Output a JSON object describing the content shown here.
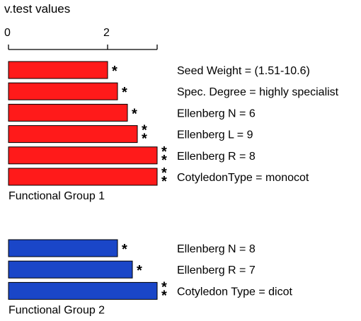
{
  "chart_data": {
    "type": "bar",
    "orientation": "horizontal",
    "title": "v.test values",
    "xlim": [
      0,
      3.0
    ],
    "ticks": [
      {
        "value": 0,
        "label": "0"
      },
      {
        "value": 2,
        "label": "2"
      }
    ],
    "grid": false,
    "groups": [
      {
        "name": "Functional Group 1",
        "color": "#ff1a1a",
        "bars": [
          {
            "category": "Seed Weight = (1.51-10.6)",
            "value": 2.0,
            "significance": "*"
          },
          {
            "category": "Spec. Degree = highly specialist",
            "value": 2.2,
            "significance": "*"
          },
          {
            "category": "Ellenberg N = 6",
            "value": 2.4,
            "significance": "*"
          },
          {
            "category": "Ellenberg L = 9",
            "value": 2.6,
            "significance": "**"
          },
          {
            "category": "Ellenberg R = 8",
            "value": 3.0,
            "significance": "**"
          },
          {
            "category": "CotyledonType = monocot",
            "value": 3.0,
            "significance": "**"
          }
        ]
      },
      {
        "name": "Functional Group 2",
        "color": "#1a46c8",
        "bars": [
          {
            "category": "Ellenberg N = 8",
            "value": 2.2,
            "significance": "*"
          },
          {
            "category": "Ellenberg R = 7",
            "value": 2.5,
            "significance": "*"
          },
          {
            "category": "Cotyledon Type = dicot",
            "value": 3.0,
            "significance": "**"
          }
        ]
      }
    ]
  }
}
